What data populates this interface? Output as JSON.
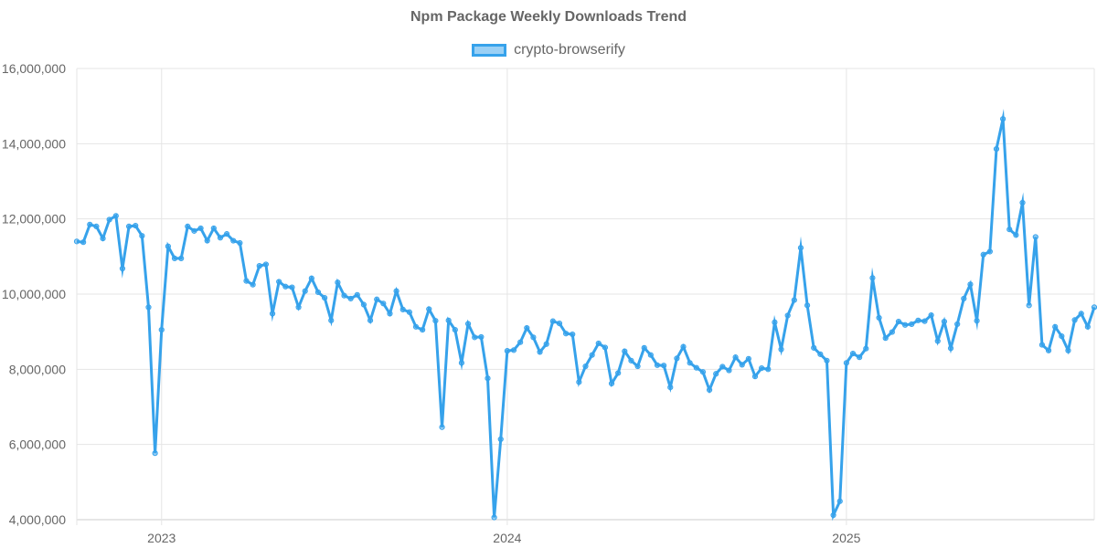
{
  "chart_data": {
    "type": "line",
    "title": "Npm Package Weekly Downloads Trend",
    "xlabel": "",
    "ylabel": "",
    "ylim": [
      4000000,
      16000000
    ],
    "ytick_labels": [
      "4,000,000",
      "6,000,000",
      "8,000,000",
      "10,000,000",
      "12,000,000",
      "14,000,000",
      "16,000,000"
    ],
    "xtick_labels": [
      "2023",
      "2024",
      "2025"
    ],
    "grid": true,
    "legend": "top-center",
    "series": [
      {
        "name": "crypto-browserify",
        "color": "#36a2eb",
        "fill": "rgba(54,162,235,0.5)",
        "values": [
          11400000,
          11380000,
          11850000,
          11800000,
          11480000,
          11980000,
          12080000,
          10680000,
          11800000,
          11820000,
          11550000,
          9650000,
          5770000,
          9050000,
          11270000,
          10950000,
          10950000,
          11800000,
          11680000,
          11750000,
          11420000,
          11750000,
          11500000,
          11600000,
          11420000,
          11360000,
          10350000,
          10250000,
          10750000,
          10790000,
          9480000,
          10330000,
          10200000,
          10180000,
          9650000,
          10080000,
          10420000,
          10050000,
          9900000,
          9300000,
          10310000,
          9960000,
          9880000,
          9980000,
          9720000,
          9300000,
          9860000,
          9750000,
          9480000,
          10080000,
          9590000,
          9520000,
          9130000,
          9050000,
          9600000,
          9290000,
          6460000,
          9300000,
          9050000,
          8170000,
          9210000,
          8850000,
          8860000,
          7760000,
          4060000,
          6140000,
          8490000,
          8510000,
          8720000,
          9100000,
          8850000,
          8460000,
          8670000,
          9280000,
          9220000,
          8950000,
          8930000,
          7660000,
          8080000,
          8380000,
          8690000,
          8580000,
          7620000,
          7900000,
          8480000,
          8230000,
          8080000,
          8570000,
          8380000,
          8110000,
          8100000,
          7520000,
          8290000,
          8600000,
          8170000,
          8040000,
          7930000,
          7450000,
          7880000,
          8070000,
          7970000,
          8320000,
          8120000,
          8280000,
          7810000,
          8030000,
          8000000,
          9250000,
          8530000,
          9430000,
          9840000,
          11230000,
          9700000,
          8570000,
          8400000,
          8230000,
          4120000,
          4490000,
          8170000,
          8420000,
          8320000,
          8550000,
          10430000,
          9370000,
          8830000,
          8990000,
          9270000,
          9180000,
          9200000,
          9300000,
          9280000,
          9440000,
          8750000,
          9270000,
          8560000,
          9200000,
          9880000,
          10260000,
          9290000,
          11050000,
          11130000,
          13860000,
          14660000,
          11720000,
          11570000,
          12430000,
          9700000,
          11520000,
          8650000,
          8500000,
          9130000,
          8880000,
          8500000,
          9310000,
          9480000,
          9130000,
          9650000
        ]
      }
    ]
  }
}
